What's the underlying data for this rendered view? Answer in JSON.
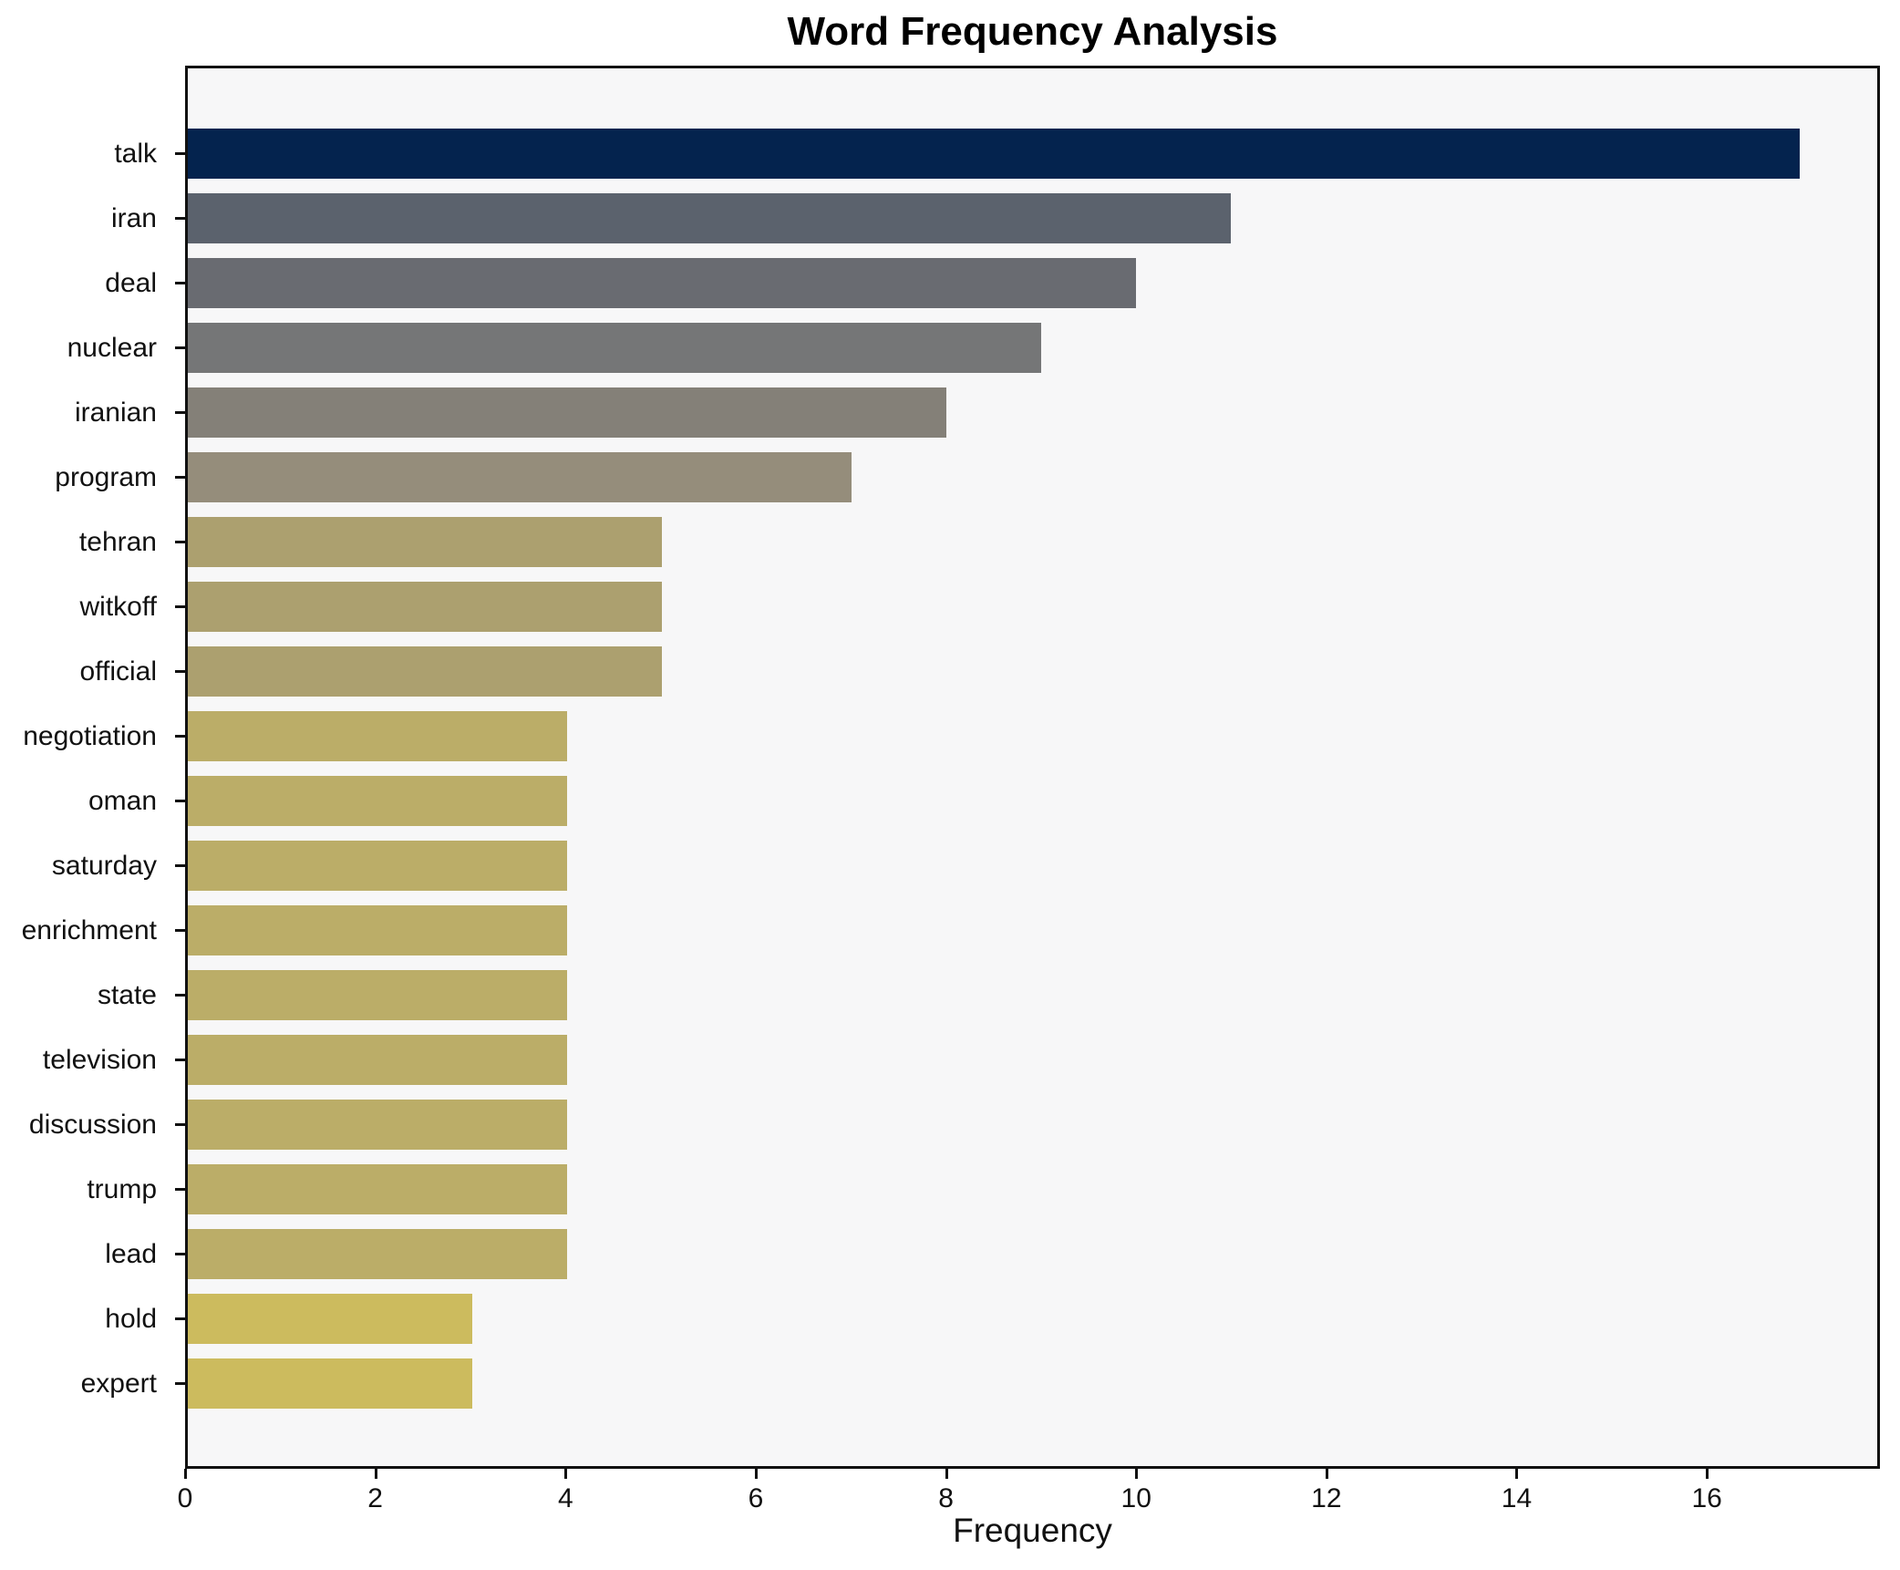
{
  "title": "Word Frequency Analysis",
  "chart_data": {
    "type": "bar",
    "orientation": "horizontal",
    "title": "Word Frequency Analysis",
    "xlabel": "Frequency",
    "ylabel": "",
    "categories": [
      "talk",
      "iran",
      "deal",
      "nuclear",
      "iranian",
      "program",
      "tehran",
      "witkoff",
      "official",
      "negotiation",
      "oman",
      "saturday",
      "enrichment",
      "state",
      "television",
      "discussion",
      "trump",
      "lead",
      "hold",
      "expert"
    ],
    "values": [
      17,
      11,
      10,
      9,
      8,
      7,
      5,
      5,
      5,
      4,
      4,
      4,
      4,
      4,
      4,
      4,
      4,
      4,
      3,
      3
    ],
    "bar_colors": [
      "#04234e",
      "#5b626d",
      "#696b71",
      "#757677",
      "#848078",
      "#958d7b",
      "#aca06f",
      "#aca06f",
      "#aca06f",
      "#bbad68",
      "#bbad68",
      "#bbad68",
      "#bbad68",
      "#bbad68",
      "#bbad68",
      "#bbad68",
      "#bbad68",
      "#bbad68",
      "#ccbb5e",
      "#ccbb5e"
    ],
    "xlim": [
      0,
      17.82
    ],
    "xticks": [
      0,
      2,
      4,
      6,
      8,
      10,
      12,
      14,
      16
    ],
    "grid": false,
    "legend": "none",
    "plot_background": "#f7f7f8",
    "figure_background": "#ffffff",
    "spine_color": "#111111"
  }
}
